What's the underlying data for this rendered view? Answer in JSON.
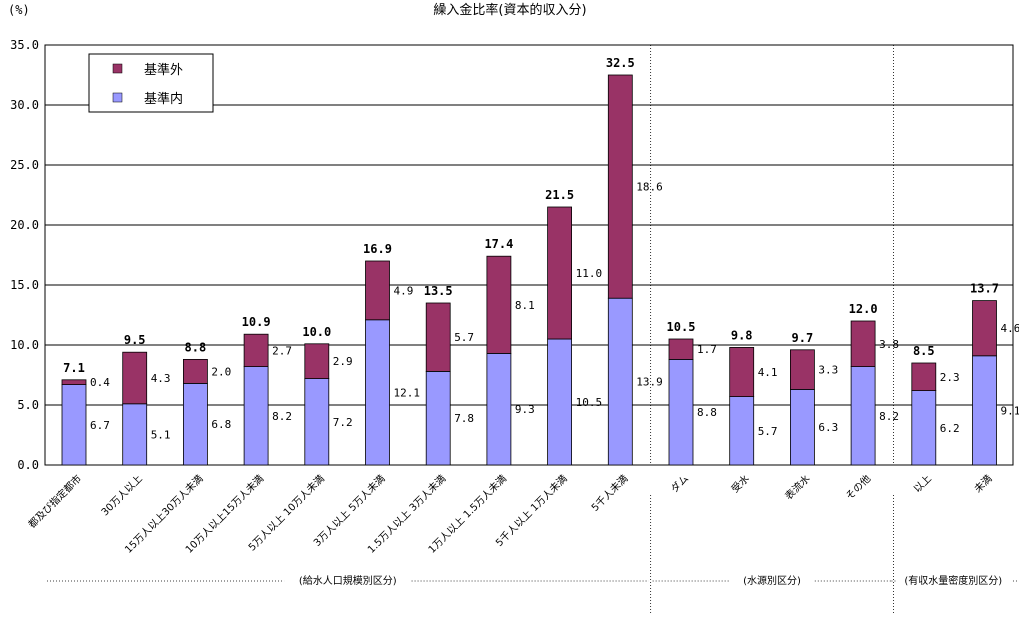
{
  "chart_data": {
    "type": "bar",
    "stacked": true,
    "title": "繰入金比率(資本的収入分)",
    "ylabel": "(%)",
    "ylim": [
      0,
      35
    ],
    "yticks": [
      "0.0",
      "5.0",
      "10.0",
      "15.0",
      "20.0",
      "25.0",
      "30.0",
      "35.0"
    ],
    "grid": true,
    "legend_position": "top-left",
    "categories": [
      "都及び指定都市",
      "30万人以上",
      "15万人以上30万人未満",
      "10万人以上15万人未満",
      "5万人以上 10万人未満",
      "3万人以上 5万人未満",
      "1.5万人以上 3万人未満",
      "1万人以上 1.5万人未満",
      "5千人以上 1万人未満",
      "5千人未満",
      "ダム",
      "受水",
      "表流水",
      "その他",
      "以上",
      "未満"
    ],
    "series": [
      {
        "name": "基準内",
        "color": "#9999ff",
        "values": [
          6.7,
          5.1,
          6.8,
          8.2,
          7.2,
          12.1,
          7.8,
          9.3,
          10.5,
          13.9,
          8.8,
          5.7,
          6.3,
          8.2,
          6.2,
          9.1
        ],
        "labels": [
          "6.7",
          "5.1",
          "6.8",
          "8.2",
          "7.2",
          "12.1",
          "7.8",
          "9.3",
          "10.5",
          "13.9",
          "8.8",
          "5.7",
          "6.3",
          "8.2",
          "6.2",
          "9.1"
        ]
      },
      {
        "name": "基準外",
        "color": "#993366",
        "values": [
          0.4,
          4.3,
          2.0,
          2.7,
          2.9,
          4.9,
          5.7,
          8.1,
          11.0,
          18.6,
          1.7,
          4.1,
          3.3,
          3.8,
          2.3,
          4.6
        ],
        "labels": [
          "0.4",
          "4.3",
          "2.0",
          "2.7",
          "2.9",
          "4.9",
          "5.7",
          "8.1",
          "11.0",
          "18.6",
          "1.7",
          "4.1",
          "3.3",
          "3.8",
          "2.3",
          "4.6"
        ]
      }
    ],
    "totals": [
      7.1,
      9.5,
      8.8,
      10.9,
      10.0,
      16.9,
      13.5,
      17.4,
      21.5,
      32.5,
      10.5,
      9.8,
      9.7,
      12.0,
      8.5,
      13.7
    ],
    "total_labels": [
      "7.1",
      "9.5",
      "8.8",
      "10.9",
      "10.0",
      "16.9",
      "13.5",
      "17.4",
      "21.5",
      "32.5",
      "10.5",
      "9.8",
      "9.7",
      "12.0",
      "8.5",
      "13.7"
    ],
    "groups": [
      {
        "label": "(給水人口規模別区分)",
        "from": 0,
        "to": 9
      },
      {
        "label": "(水源別区分)",
        "from": 10,
        "to": 13
      },
      {
        "label": "(有収水量密度別区分)",
        "from": 14,
        "to": 15
      }
    ]
  }
}
